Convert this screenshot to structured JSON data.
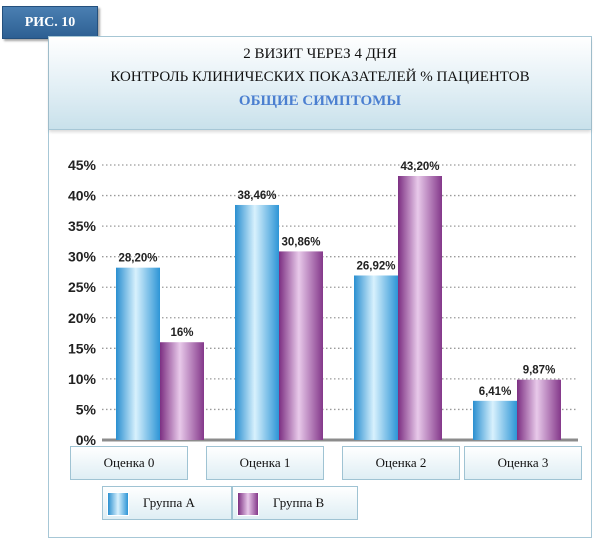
{
  "figure_label": "РИС. 10",
  "title_line1": "2 ВИЗИТ ЧЕРЕЗ 4 ДНЯ",
  "title_line2": "КОНТРОЛЬ КЛИНИЧЕСКИХ ПОКАЗАТЕЛЕЙ % ПАЦИЕНТОВ",
  "title_line3": "ОБЩИЕ СИМПТОМЫ",
  "colors": {
    "group_a": "#4fb3e6",
    "group_b": "#9b4f9e",
    "grid": "#9a9a9a",
    "axis": "#8c8c8c",
    "title_accent": "#4b7fd0"
  },
  "chart_data": {
    "type": "bar",
    "categories": [
      "Оценка 0",
      "Оценка 1",
      "Оценка 2",
      "Оценка 3"
    ],
    "series": [
      {
        "name": "Группа А",
        "values": [
          28.2,
          38.46,
          26.92,
          6.41
        ],
        "labels": [
          "28,20%",
          "38,46%",
          "26,92%",
          "6,41%"
        ]
      },
      {
        "name": "Группа В",
        "values": [
          16,
          30.86,
          43.2,
          9.87
        ],
        "labels": [
          "16%",
          "30,86%",
          "43,20%",
          "9,87%"
        ]
      }
    ],
    "ylim": [
      0,
      45
    ],
    "yticks": [
      0,
      5,
      10,
      15,
      20,
      25,
      30,
      35,
      40,
      45
    ],
    "ytick_labels": [
      "0%",
      "5%",
      "10%",
      "15%",
      "20%",
      "25%",
      "30%",
      "35%",
      "40%",
      "45%"
    ],
    "grid": true,
    "legend_position": "bottom-left"
  }
}
